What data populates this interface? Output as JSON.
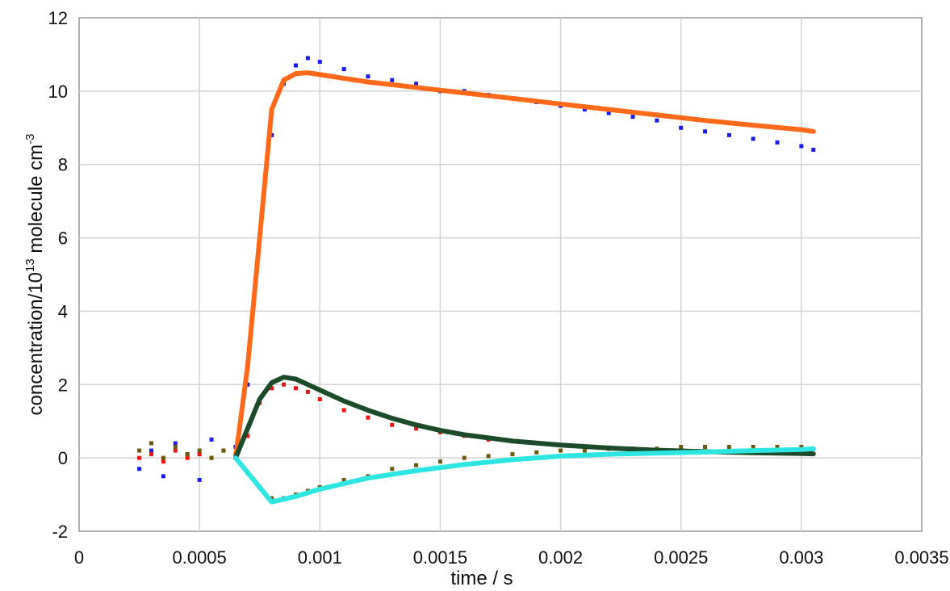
{
  "chart_data": {
    "type": "scatter",
    "title": "",
    "xlabel": "time / s",
    "ylabel": {
      "base": "concentration/10",
      "exp": "13",
      "mid": " molecule  cm",
      "exp2": "-3"
    },
    "xlim": [
      0,
      0.0035
    ],
    "ylim": [
      -2,
      12
    ],
    "xticks": [
      0,
      0.0005,
      0.001,
      0.0015,
      0.002,
      0.0025,
      0.003,
      0.0035
    ],
    "xtick_labels": [
      "0",
      "0.0005",
      "0.001",
      "0.0015",
      "0.002",
      "0.0025",
      "0.003",
      "0.0035"
    ],
    "yticks": [
      -2,
      0,
      2,
      4,
      6,
      8,
      10,
      12
    ],
    "ytick_labels": [
      "-2",
      "0",
      "2",
      "4",
      "6",
      "8",
      "10",
      "12"
    ],
    "grid": true,
    "colors": {
      "blue_points": "#1a1aee",
      "red_points": "#ee1111",
      "olive_points": "#6b5a10",
      "orange_fit": "#ff6a1a",
      "green_fit": "#1d4a2a",
      "cyan_fit": "#2ee6e0",
      "grid": "#d4d4d4"
    },
    "series": [
      {
        "kind": "scatter",
        "color_key": "blue_points",
        "x": [
          0.00025,
          0.0003,
          0.00035,
          0.0004,
          0.00045,
          0.0005,
          0.00055,
          0.0006,
          0.00065,
          0.0007,
          0.00075,
          0.0008,
          0.00085,
          0.0009,
          0.00095,
          0.001,
          0.0011,
          0.0012,
          0.0013,
          0.0014,
          0.0015,
          0.0016,
          0.0017,
          0.0018,
          0.0019,
          0.002,
          0.0021,
          0.0022,
          0.0023,
          0.0024,
          0.0025,
          0.0026,
          0.0027,
          0.0028,
          0.0029,
          0.003,
          0.00305
        ],
        "y": [
          -0.3,
          0.2,
          -0.5,
          0.4,
          0.1,
          -0.6,
          0.5,
          0.2,
          0.3,
          2.0,
          6.0,
          8.8,
          10.2,
          10.7,
          10.9,
          10.8,
          10.6,
          10.4,
          10.3,
          10.2,
          10.0,
          10.0,
          9.9,
          9.8,
          9.7,
          9.6,
          9.5,
          9.4,
          9.3,
          9.2,
          9.0,
          8.9,
          8.8,
          8.7,
          8.6,
          8.5,
          8.4
        ]
      },
      {
        "kind": "scatter",
        "color_key": "red_points",
        "x": [
          0.00025,
          0.0003,
          0.00035,
          0.0004,
          0.00045,
          0.0005,
          0.00055,
          0.0006,
          0.00065,
          0.0007,
          0.00075,
          0.0008,
          0.00085,
          0.0009,
          0.00095,
          0.001,
          0.0011,
          0.0012,
          0.0013,
          0.0014,
          0.0015,
          0.0016,
          0.0017,
          0.0018,
          0.0019,
          0.002,
          0.0021,
          0.0022,
          0.0023,
          0.0024,
          0.0025,
          0.0026,
          0.0027,
          0.0028,
          0.0029,
          0.003
        ],
        "y": [
          0.0,
          0.1,
          -0.1,
          0.2,
          0.0,
          0.1,
          0.0,
          0.2,
          0.1,
          0.6,
          1.5,
          1.9,
          2.0,
          1.9,
          1.8,
          1.6,
          1.3,
          1.1,
          0.9,
          0.8,
          0.7,
          0.6,
          0.5,
          0.45,
          0.4,
          0.35,
          0.3,
          0.28,
          0.25,
          0.22,
          0.2,
          0.18,
          0.16,
          0.15,
          0.14,
          0.13
        ]
      },
      {
        "kind": "scatter",
        "color_key": "olive_points",
        "x": [
          0.00025,
          0.0003,
          0.00035,
          0.0004,
          0.00045,
          0.0005,
          0.00055,
          0.0006,
          0.00065,
          0.0007,
          0.00075,
          0.0008,
          0.00085,
          0.0009,
          0.00095,
          0.001,
          0.0011,
          0.0012,
          0.0013,
          0.0014,
          0.0015,
          0.0016,
          0.0017,
          0.0018,
          0.0019,
          0.002,
          0.0021,
          0.0022,
          0.0023,
          0.0024,
          0.0025,
          0.0026,
          0.0027,
          0.0028,
          0.0029,
          0.003
        ],
        "y": [
          0.2,
          0.4,
          0.0,
          0.3,
          0.1,
          0.2,
          0.0,
          0.2,
          0.0,
          -0.4,
          -0.8,
          -1.1,
          -1.1,
          -1.0,
          -0.9,
          -0.8,
          -0.6,
          -0.5,
          -0.3,
          -0.2,
          -0.1,
          0.0,
          0.05,
          0.1,
          0.15,
          0.2,
          0.2,
          0.25,
          0.25,
          0.25,
          0.3,
          0.3,
          0.3,
          0.3,
          0.3,
          0.3
        ]
      },
      {
        "kind": "line",
        "color_key": "orange_fit",
        "x": [
          0.00065,
          0.0007,
          0.00075,
          0.0008,
          0.00085,
          0.0009,
          0.00095,
          0.001,
          0.0011,
          0.0012,
          0.0014,
          0.0016,
          0.0018,
          0.002,
          0.0022,
          0.0024,
          0.0026,
          0.0028,
          0.003,
          0.00305
        ],
        "y": [
          0.0,
          2.5,
          6.0,
          9.5,
          10.3,
          10.48,
          10.5,
          10.45,
          10.35,
          10.25,
          10.1,
          9.95,
          9.8,
          9.65,
          9.5,
          9.35,
          9.2,
          9.07,
          8.95,
          8.9
        ]
      },
      {
        "kind": "line",
        "color_key": "green_fit",
        "x": [
          0.00065,
          0.0007,
          0.00075,
          0.0008,
          0.00085,
          0.0009,
          0.00095,
          0.001,
          0.0011,
          0.0012,
          0.0013,
          0.0014,
          0.0015,
          0.0016,
          0.0018,
          0.002,
          0.0022,
          0.0024,
          0.0026,
          0.0028,
          0.003,
          0.00305
        ],
        "y": [
          0.0,
          0.8,
          1.6,
          2.05,
          2.2,
          2.15,
          2.0,
          1.85,
          1.55,
          1.3,
          1.08,
          0.9,
          0.75,
          0.63,
          0.46,
          0.35,
          0.27,
          0.21,
          0.17,
          0.14,
          0.12,
          0.11
        ]
      },
      {
        "kind": "line",
        "color_key": "cyan_fit",
        "x": [
          0.00065,
          0.0008,
          0.0009,
          0.001,
          0.0011,
          0.0012,
          0.0014,
          0.0016,
          0.0018,
          0.002,
          0.0022,
          0.0024,
          0.0026,
          0.0028,
          0.003,
          0.00305
        ],
        "y": [
          0.0,
          -1.2,
          -1.05,
          -0.85,
          -0.7,
          -0.55,
          -0.35,
          -0.18,
          -0.05,
          0.05,
          0.1,
          0.13,
          0.16,
          0.2,
          0.23,
          0.25
        ]
      }
    ]
  }
}
